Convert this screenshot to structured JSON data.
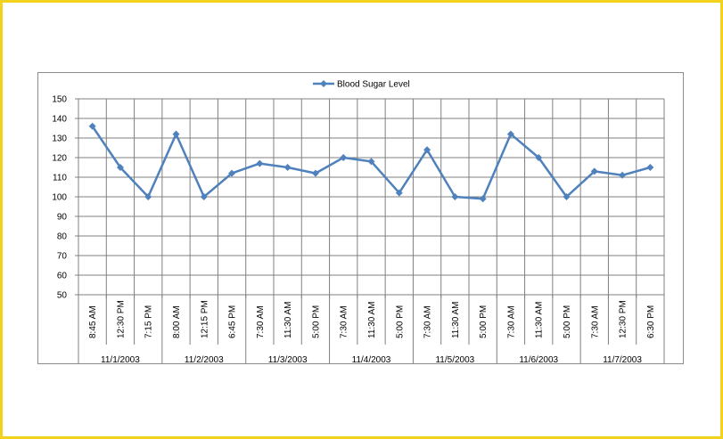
{
  "chart_data": {
    "type": "line",
    "title": "",
    "xlabel": "",
    "ylabel": "",
    "ylim": [
      50,
      150
    ],
    "ytick_step": 10,
    "grid": true,
    "legend_position": "top-center",
    "colors": {
      "series": "#4f81bd",
      "grid": "#808080",
      "axis": "#808080"
    },
    "groups": [
      {
        "label": "11/1/2003",
        "times": [
          "8:45 AM",
          "12:30 PM",
          "7:15 PM"
        ]
      },
      {
        "label": "11/2/2003",
        "times": [
          "8:00 AM",
          "12:15 PM",
          "6:45 PM"
        ]
      },
      {
        "label": "11/3/2003",
        "times": [
          "7:30 AM",
          "11:30 AM",
          "5:00 PM"
        ]
      },
      {
        "label": "11/4/2003",
        "times": [
          "7:30 AM",
          "11:30 AM",
          "5:00 PM"
        ]
      },
      {
        "label": "11/5/2003",
        "times": [
          "7:30 AM",
          "11:30 AM",
          "5:00 PM"
        ]
      },
      {
        "label": "11/6/2003",
        "times": [
          "7:30 AM",
          "11:30 AM",
          "5:00 PM"
        ]
      },
      {
        "label": "11/7/2003",
        "times": [
          "7:30 AM",
          "12:30 PM",
          "6:30 PM"
        ]
      }
    ],
    "series": [
      {
        "name": "Blood Sugar Level",
        "values": [
          136,
          115,
          100,
          132,
          100,
          112,
          117,
          115,
          112,
          120,
          118,
          102,
          124,
          100,
          99,
          132,
          120,
          100,
          113,
          111,
          115
        ]
      }
    ]
  }
}
